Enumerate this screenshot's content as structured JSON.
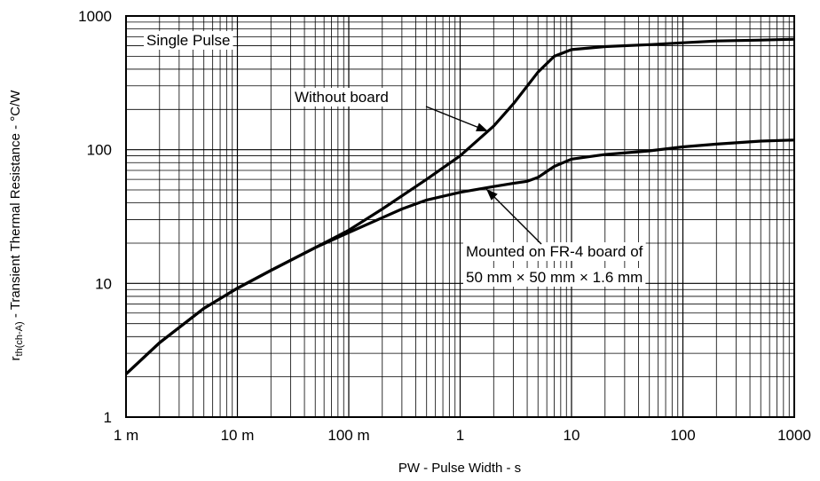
{
  "chart_data": {
    "type": "line",
    "xlabel": "PW - Pulse Width - s",
    "ylabel_main": "r",
    "ylabel_sub": "th(ch-A)",
    "ylabel_rest": " - Transient Thermal Resistance - °C/W",
    "x_scale": "log",
    "y_scale": "log",
    "xlim": [
      0.001,
      1000
    ],
    "ylim": [
      1,
      1000
    ],
    "grid": true,
    "x_ticks": [
      {
        "value": 0.001,
        "label": "1 m"
      },
      {
        "value": 0.01,
        "label": "10 m"
      },
      {
        "value": 0.1,
        "label": "100 m"
      },
      {
        "value": 1,
        "label": "1"
      },
      {
        "value": 10,
        "label": "10"
      },
      {
        "value": 100,
        "label": "100"
      },
      {
        "value": 1000,
        "label": "1000"
      }
    ],
    "y_ticks": [
      {
        "value": 1,
        "label": "1"
      },
      {
        "value": 10,
        "label": "10"
      },
      {
        "value": 100,
        "label": "100"
      },
      {
        "value": 1000,
        "label": "1000"
      }
    ],
    "annotations": {
      "single_pulse": "Single Pulse",
      "without_board": "Without board",
      "mounted_line1": "Mounted on FR-4 board of",
      "mounted_line2": "50 mm × 50 mm × 1.6 mm"
    },
    "series": [
      {
        "name": "Without board",
        "x": [
          0.001,
          0.002,
          0.005,
          0.01,
          0.02,
          0.05,
          0.1,
          0.2,
          0.5,
          1,
          2,
          3,
          5,
          7,
          10,
          20,
          50,
          100,
          200,
          500,
          1000
        ],
        "y": [
          2.1,
          3.6,
          6.5,
          9.2,
          12.5,
          18.5,
          25,
          36,
          60,
          90,
          150,
          220,
          380,
          500,
          560,
          590,
          610,
          630,
          650,
          660,
          670
        ]
      },
      {
        "name": "Mounted on FR-4 board of 50 mm × 50 mm × 1.6 mm",
        "x": [
          0.001,
          0.002,
          0.005,
          0.01,
          0.02,
          0.05,
          0.1,
          0.2,
          0.3,
          0.5,
          1,
          2,
          3,
          4,
          5,
          7,
          10,
          20,
          50,
          100,
          200,
          500,
          1000
        ],
        "y": [
          2.1,
          3.6,
          6.5,
          9.2,
          12.5,
          18.5,
          24,
          31,
          36,
          42,
          48,
          53,
          56,
          58,
          62,
          75,
          85,
          92,
          98,
          105,
          110,
          116,
          118
        ]
      }
    ]
  }
}
